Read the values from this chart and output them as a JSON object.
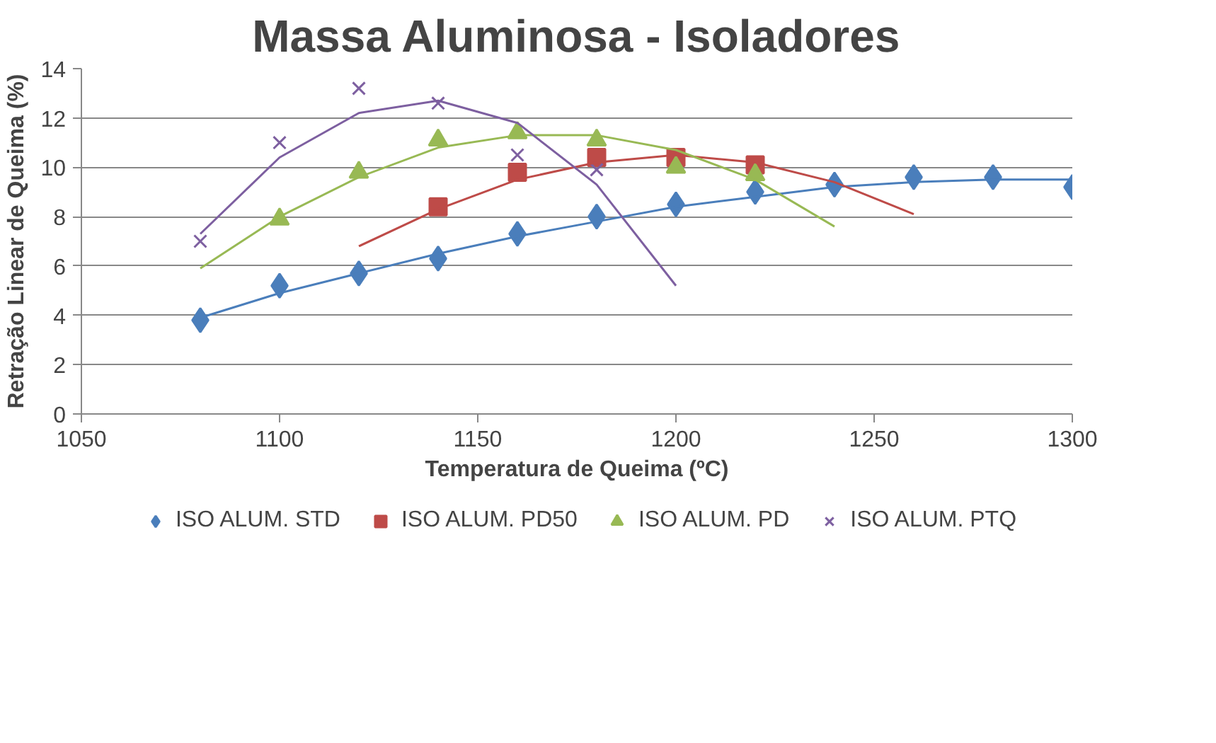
{
  "chart_data": {
    "type": "scatter",
    "title": "Massa Aluminosa - Isoladores",
    "xlabel": "Temperatura de Queima (ºC)",
    "ylabel": "Retração Linear de Queima (%)",
    "xlim": [
      1050,
      1300
    ],
    "xticks": [
      1050,
      1100,
      1150,
      1200,
      1250,
      1300
    ],
    "ylim": [
      0,
      14
    ],
    "yticks": [
      0,
      2,
      4,
      6,
      8,
      10,
      12,
      14
    ],
    "grid": "y",
    "legend": "bottom",
    "series": [
      {
        "name": "ISO ALUM. STD",
        "color": "#4a7ebb",
        "marker": "diamond",
        "x": [
          1080,
          1100,
          1120,
          1140,
          1160,
          1180,
          1200,
          1220,
          1240,
          1260,
          1280,
          1300
        ],
        "values": [
          3.8,
          5.2,
          5.7,
          6.3,
          7.3,
          8.0,
          8.5,
          9.0,
          9.3,
          9.6,
          9.6,
          9.2
        ]
      },
      {
        "name": "ISO ALUM. PD50",
        "color": "#be4b48",
        "marker": "square",
        "x": [
          1140,
          1160,
          1180,
          1200,
          1220
        ],
        "values": [
          8.4,
          9.8,
          10.4,
          10.4,
          10.1
        ]
      },
      {
        "name": "ISO ALUM. PD",
        "color": "#98b954",
        "marker": "triangle",
        "x": [
          1100,
          1120,
          1140,
          1160,
          1180,
          1200,
          1220
        ],
        "values": [
          7.9,
          9.8,
          11.1,
          11.4,
          11.1,
          10.0,
          9.7
        ]
      },
      {
        "name": "ISO ALUM. PTQ",
        "color": "#7d5fa0",
        "marker": "cross",
        "x": [
          1080,
          1100,
          1120,
          1140,
          1160,
          1180
        ],
        "values": [
          7.0,
          11.0,
          13.2,
          12.6,
          10.5,
          9.9
        ]
      },
      {
        "type": "line",
        "color": "#4a7ebb",
        "marker": "none",
        "x": [
          1080,
          1100,
          1120,
          1140,
          1160,
          1180,
          1200,
          1220,
          1240,
          1260,
          1280,
          1300
        ],
        "values": [
          3.9,
          4.9,
          5.7,
          6.5,
          7.2,
          7.8,
          8.4,
          8.8,
          9.2,
          9.4,
          9.5,
          9.5
        ]
      },
      {
        "type": "line",
        "color": "#be4b48",
        "marker": "none",
        "x": [
          1120,
          1140,
          1160,
          1180,
          1200,
          1220,
          1240,
          1260
        ],
        "values": [
          6.8,
          8.3,
          9.5,
          10.2,
          10.5,
          10.2,
          9.4,
          8.1
        ]
      },
      {
        "type": "line",
        "color": "#98b954",
        "marker": "none",
        "x": [
          1080,
          1100,
          1120,
          1140,
          1160,
          1180,
          1200,
          1220,
          1240
        ],
        "values": [
          5.9,
          8.0,
          9.6,
          10.8,
          11.3,
          11.3,
          10.7,
          9.5,
          7.6
        ]
      },
      {
        "type": "line",
        "color": "#7d5fa0",
        "marker": "none",
        "x": [
          1080,
          1100,
          1120,
          1140,
          1160,
          1180,
          1200
        ],
        "values": [
          7.3,
          10.4,
          12.2,
          12.7,
          11.8,
          9.3,
          5.2
        ]
      }
    ]
  }
}
